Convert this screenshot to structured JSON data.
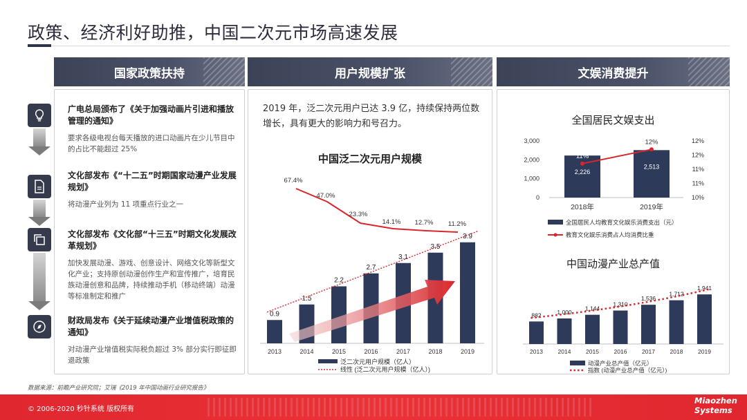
{
  "title": "政策、经济利好助推，中国二次元市场高速发展",
  "panels": {
    "policy": {
      "heading": "国家政策扶持"
    },
    "users": {
      "heading": "用户规模扩张",
      "intro": "2019 年，泛二次元用户已达 3.9 亿，持续保持两位数增长，具有更大的影响力和号召力。"
    },
    "spending": {
      "heading": "文娱消费提升"
    }
  },
  "policies": [
    {
      "heading": "广电总局颁布了《关于加强动画片引进和播放管理的通知》",
      "body": "要求各级电视台每天播放的进口动画片在少儿节目中的占比不能超过 25%",
      "icon": "lightbulb-icon"
    },
    {
      "heading": "文化部发布《“十二五”时期国家动漫产业发展规划》",
      "body": "将动漫产业列为 11 项重点行业之一",
      "icon": "document-icon"
    },
    {
      "heading": "文化部发布《文化部“十三五”时期文化发展改革规划》",
      "body": "加快发展动漫、游戏、创意设计、网络文化等新型文化产业；支持原创动漫创作生产和宣传推广，培育民族动漫创意和品牌，持续推动手机（移动终端）动漫等标准制定和推广",
      "icon": "copy-icon"
    },
    {
      "heading": "财政局发布《关于延续动漫产业增值税政策的通知》",
      "body": "对动漫产业增值税实际税负超过 3% 部分实行即征即退政策",
      "icon": "compass-icon"
    }
  ],
  "chart_data": [
    {
      "type": "bar",
      "title": "中国泛二次元用户规模",
      "categories": [
        "2013",
        "2014",
        "2015",
        "2016",
        "2017",
        "2018",
        "2019"
      ],
      "series": [
        {
          "name": "泛二次元用户规模（亿人）",
          "values": [
            0.9,
            1.5,
            2.2,
            2.7,
            3.1,
            3.5,
            3.9
          ],
          "labels": [
            "0.9",
            "1.5",
            "2.2",
            "2.7",
            "3.1",
            "3.5",
            "3.9"
          ],
          "color": "#2e3a59"
        },
        {
          "name": "线性 (泛二次元用户规模（亿人）)",
          "type": "trendline",
          "color": "#d9262b"
        }
      ],
      "growth": {
        "values": [
          67.4,
          47.0,
          23.3,
          14.1,
          12.7,
          11.2
        ],
        "labels": [
          "67.4%",
          "47.0%",
          "23.3%",
          "14.1%",
          "12.7%",
          "11.2%"
        ],
        "color": "#d9262b"
      }
    },
    {
      "type": "bar",
      "title": "全国居民文娱支出",
      "categories": [
        "2018年",
        "2019年"
      ],
      "series": [
        {
          "name": "全国居民人均教育文化娱乐消费支出（元）",
          "values": [
            2226,
            2513
          ],
          "labels": [
            "2,226",
            "2,513"
          ],
          "color": "#2e3a59"
        },
        {
          "name": "教育文化娱乐消费占人均消费比重",
          "type": "line",
          "axis": "right",
          "values": [
            11.2,
            11.7
          ],
          "labels": [
            "11%",
            "12%"
          ],
          "color": "#d9262b"
        }
      ],
      "y_left": {
        "ticks": [
          "3,000",
          "2,000",
          "1,000",
          "0"
        ],
        "range": [
          0,
          3000
        ]
      },
      "y_right": {
        "ticks": [
          "12%",
          "12%",
          "11%",
          "11%",
          "10%"
        ],
        "range": [
          10,
          12
        ]
      }
    },
    {
      "type": "bar",
      "title": "中国动漫产业总产值",
      "categories": [
        "2013",
        "2014",
        "2015",
        "2016",
        "2017",
        "2018",
        "2019"
      ],
      "series": [
        {
          "name": "动漫产业总产值（亿元）",
          "values": [
            882,
            1000,
            1144,
            1310,
            1536,
            1712,
            1941
          ],
          "labels": [
            "882",
            "1,000",
            "1,144",
            "1,310",
            "1,536",
            "1,712",
            "1,941"
          ],
          "color": "#2e3a59"
        },
        {
          "name": "指数 (动漫产业总产值（亿元）)",
          "type": "trendline",
          "color": "#d9262b"
        }
      ]
    }
  ],
  "source": "数据来源：前瞻产业研究院；艾瑞《2019 年中国动画行业研究报告》",
  "footer": {
    "copyright": "© 2006-2020 秒针系统 版权所有",
    "logo_line1": "Miaozhen",
    "logo_line2": "Systems"
  }
}
